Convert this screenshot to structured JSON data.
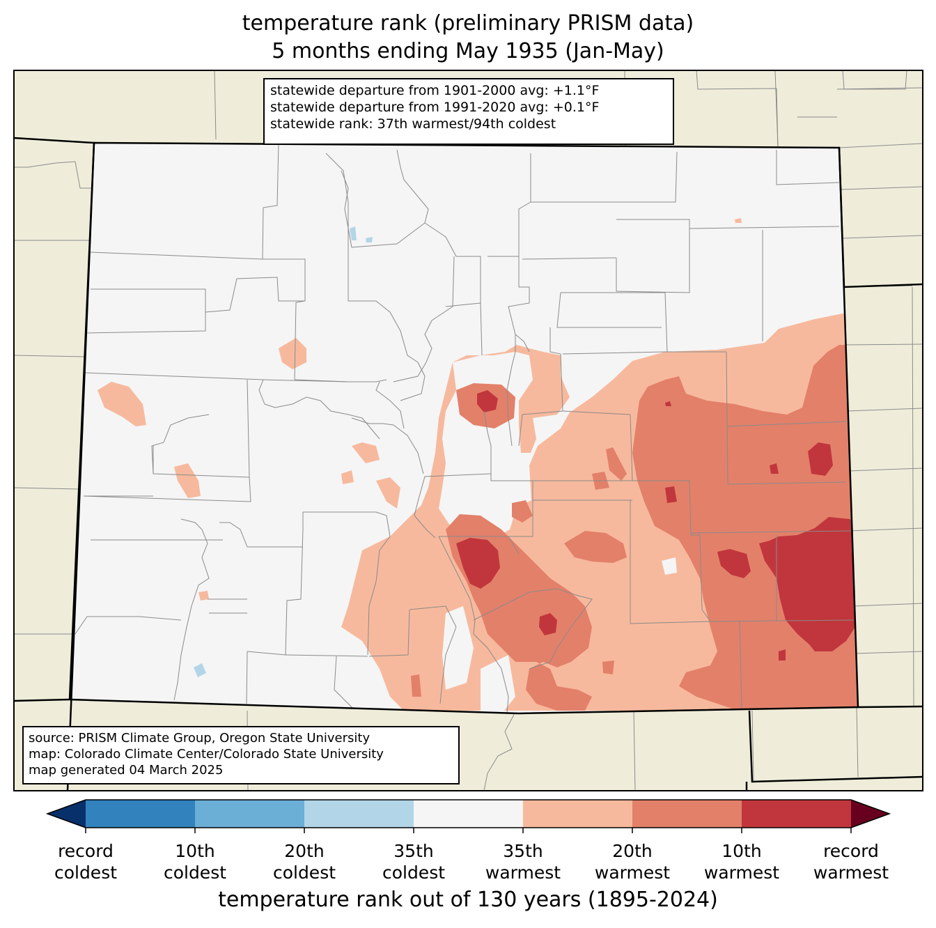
{
  "title": {
    "line1": "temperature rank (preliminary PRISM data)",
    "line2": "5 months ending May 1935 (Jan-May)"
  },
  "stats": {
    "line1": "statewide departure from 1901-2000 avg: +1.1°F",
    "line2": "statewide departure from 1991-2020 avg: +0.1°F",
    "line3": "statewide rank: 37th warmest/94th coldest"
  },
  "source": {
    "line1": "source: PRISM Climate Group, Oregon State University",
    "line2": "map: Colorado Climate Center/Colorado State University",
    "line3": "map generated 04 March 2025"
  },
  "colorbar": {
    "label": "temperature rank out of 130 years (1895-2024)",
    "ticks": [
      {
        "line1": "record",
        "line2": "coldest"
      },
      {
        "line1": "10th",
        "line2": "coldest"
      },
      {
        "line1": "20th",
        "line2": "coldest"
      },
      {
        "line1": "35th",
        "line2": "coldest"
      },
      {
        "line1": "35th",
        "line2": "warmest"
      },
      {
        "line1": "20th",
        "line2": "warmest"
      },
      {
        "line1": "10th",
        "line2": "warmest"
      },
      {
        "line1": "record",
        "line2": "warmest"
      }
    ],
    "colors": {
      "extend_cold": "#08306b",
      "bin_cold_1": "#3182bd",
      "bin_cold_2": "#6baed6",
      "bin_cold_3": "#b3d5e8",
      "bin_neutral": "#f5f5f5",
      "bin_warm_1": "#f7b99d",
      "bin_warm_2": "#e3806a",
      "bin_warm_3": "#c1363c",
      "extend_warm": "#67001f"
    }
  },
  "map_colors": {
    "land_outside": "#efedda",
    "state_fill": "#f5f5f5"
  }
}
